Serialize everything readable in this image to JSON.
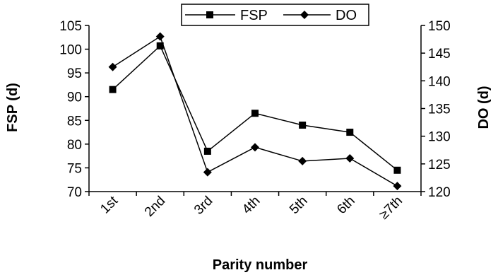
{
  "chart_data": {
    "type": "line",
    "categories": [
      "1st",
      "2nd",
      "3rd",
      "4th",
      "5th",
      "6th",
      "≥7th"
    ],
    "xlabel": "Parity number",
    "ylabel": "FSP (d)",
    "y2label": "DO (d)",
    "ylim": [
      70,
      105
    ],
    "y2lim": [
      120,
      150
    ],
    "yticks": [
      "70",
      "75",
      "80",
      "85",
      "90",
      "95",
      "100",
      "105"
    ],
    "y2ticks": [
      "120",
      "125",
      "130",
      "135",
      "140",
      "145",
      "150"
    ],
    "legend_position": "top",
    "grid": false,
    "series": [
      {
        "name": "FSP",
        "axis": "left",
        "marker": "square",
        "values": [
          91.5,
          100.7,
          78.5,
          86.5,
          84.0,
          82.5,
          74.5
        ]
      },
      {
        "name": "DO",
        "axis": "right",
        "marker": "diamond",
        "values": [
          142.5,
          148.0,
          123.5,
          128.0,
          125.5,
          126.0,
          121.0
        ]
      }
    ]
  }
}
